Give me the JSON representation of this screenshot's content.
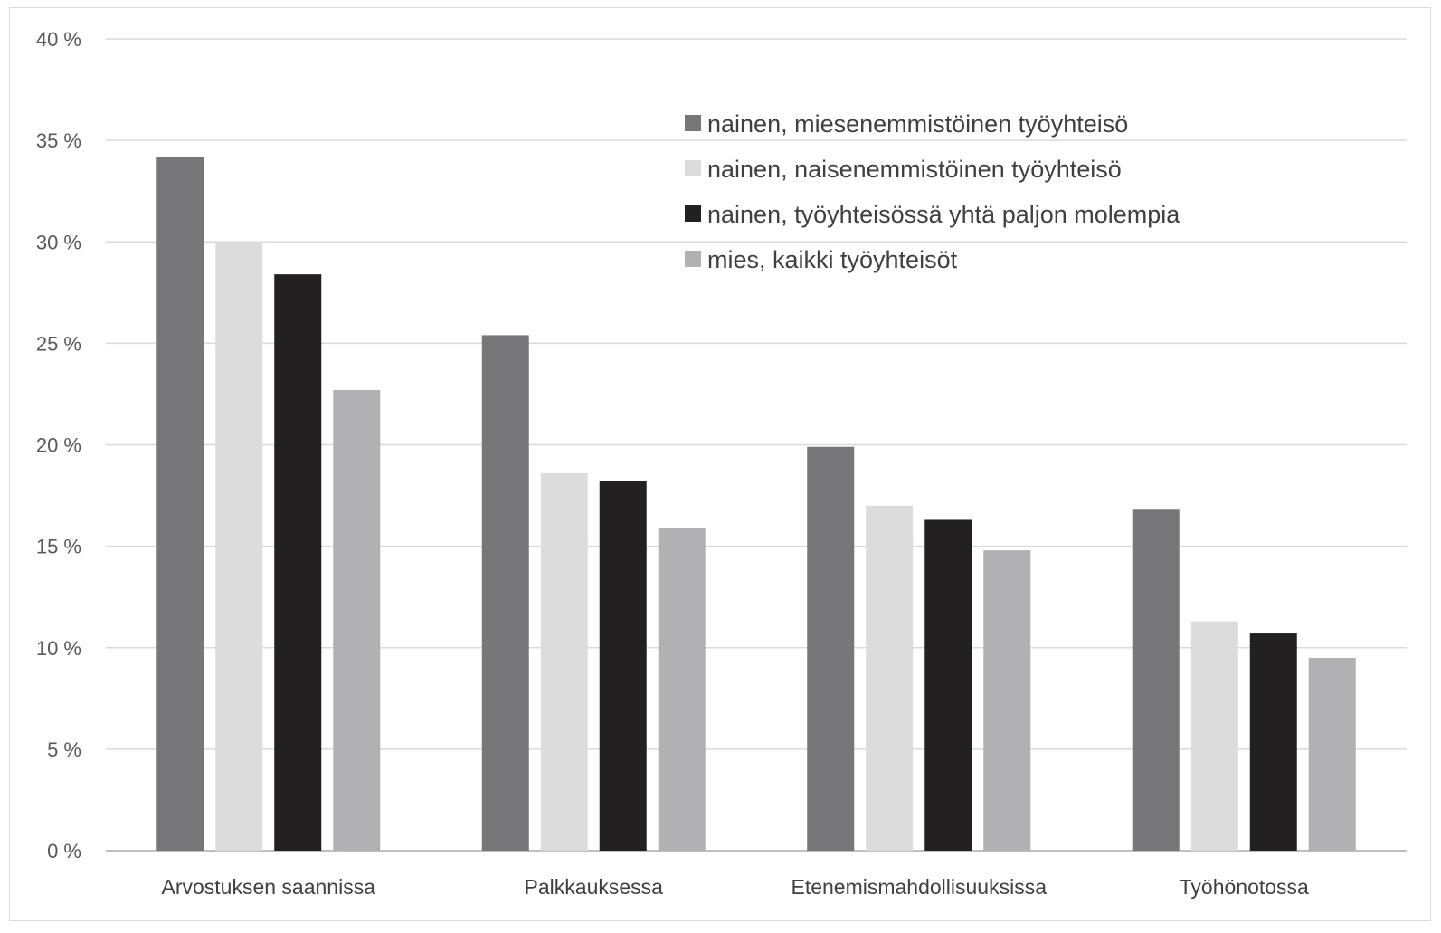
{
  "chart_data": {
    "type": "bar",
    "categories": [
      "Arvostuksen saannissa",
      "Palkkauksessa",
      "Etenemismahdollisuuksissa",
      "Työhönotossa"
    ],
    "series": [
      {
        "name": "nainen, miesenemmistöinen työyhteisö",
        "color": "#77777a",
        "values": [
          34.2,
          25.4,
          19.9,
          16.8
        ]
      },
      {
        "name": "nainen, naisenemmistöinen työyhteisö",
        "color": "#dcdcdd",
        "values": [
          30.0,
          18.6,
          17.0,
          11.3
        ]
      },
      {
        "name": "nainen, työyhteisössä yhtä paljon molempia",
        "color": "#222021",
        "values": [
          28.4,
          18.2,
          16.3,
          10.7
        ]
      },
      {
        "name": "mies, kaikki työyhteisöt",
        "color": "#b1b1b3",
        "values": [
          22.7,
          15.9,
          14.8,
          9.5
        ]
      }
    ],
    "y_ticks": [
      "0 %",
      "5 %",
      "10 %",
      "15 %",
      "20 %",
      "25 %",
      "30 %",
      "35 %",
      "40 %"
    ],
    "ylim": [
      0,
      40
    ],
    "title": "",
    "xlabel": "",
    "ylabel": "",
    "grid": true,
    "legend_position": "top-right, inside plot"
  }
}
